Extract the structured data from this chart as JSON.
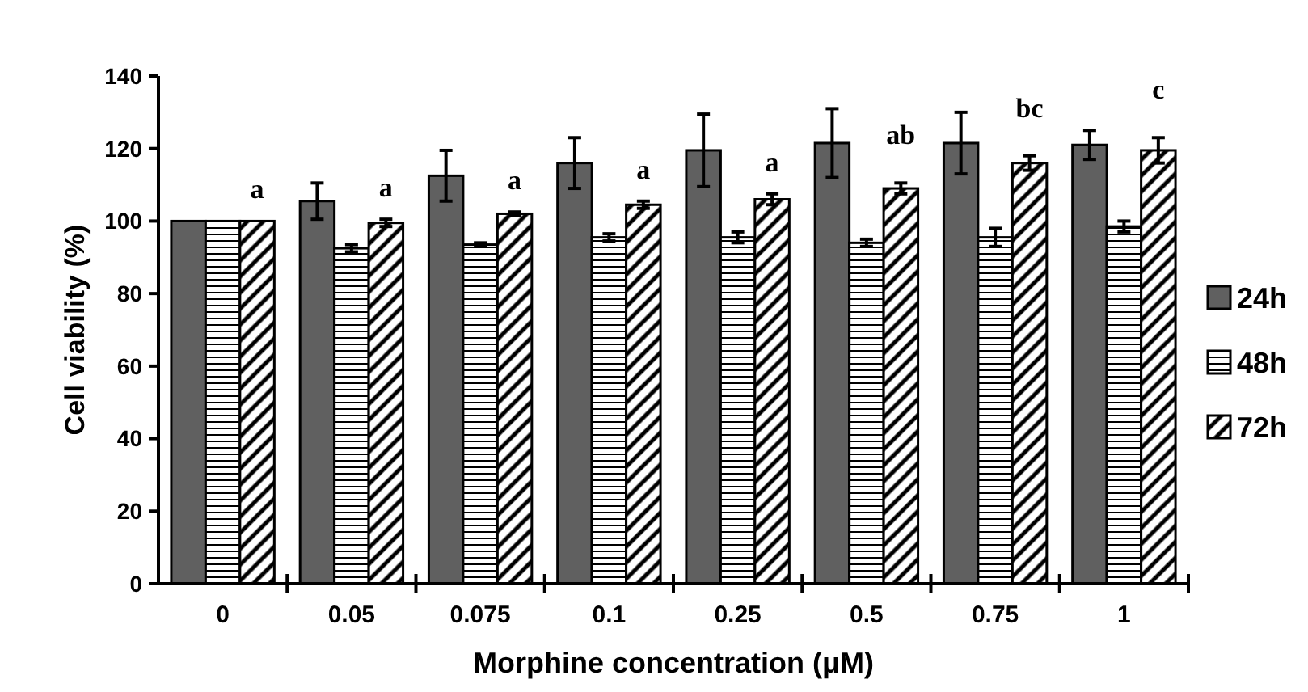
{
  "chart_data": {
    "type": "bar",
    "xlabel": "Morphine concentration (μM)",
    "ylabel": "Cell viability (%)",
    "categories": [
      "0",
      "0.05",
      "0.075",
      "0.1",
      "0.25",
      "0.5",
      "0.75",
      "1"
    ],
    "series": [
      {
        "name": "24h",
        "color": "#606060",
        "values": [
          100,
          105.5,
          112.5,
          116,
          119.5,
          121.5,
          121.5,
          121
        ],
        "errors": [
          null,
          5,
          7,
          7,
          10,
          9.5,
          8.5,
          4
        ]
      },
      {
        "name": "48h",
        "color": "#000000",
        "values": [
          100,
          92.5,
          93.5,
          95.5,
          95.5,
          94,
          95.5,
          98.5
        ],
        "errors": [
          null,
          1,
          0.5,
          1,
          1.5,
          1,
          2.5,
          1.5
        ]
      },
      {
        "name": "72h",
        "color": "#000000",
        "values": [
          100,
          99.5,
          102,
          104.5,
          106,
          109,
          116,
          119.5
        ],
        "errors": [
          null,
          1,
          0.5,
          1,
          1.5,
          1.5,
          2,
          3.5
        ]
      }
    ],
    "ylim": [
      0,
      140
    ],
    "yticks": [
      0,
      20,
      40,
      60,
      80,
      100,
      120,
      140
    ],
    "grid": false,
    "legend": "right",
    "annotations": [
      "a",
      "a",
      "a",
      "a",
      "a",
      "ab",
      "bc",
      "c"
    ]
  }
}
